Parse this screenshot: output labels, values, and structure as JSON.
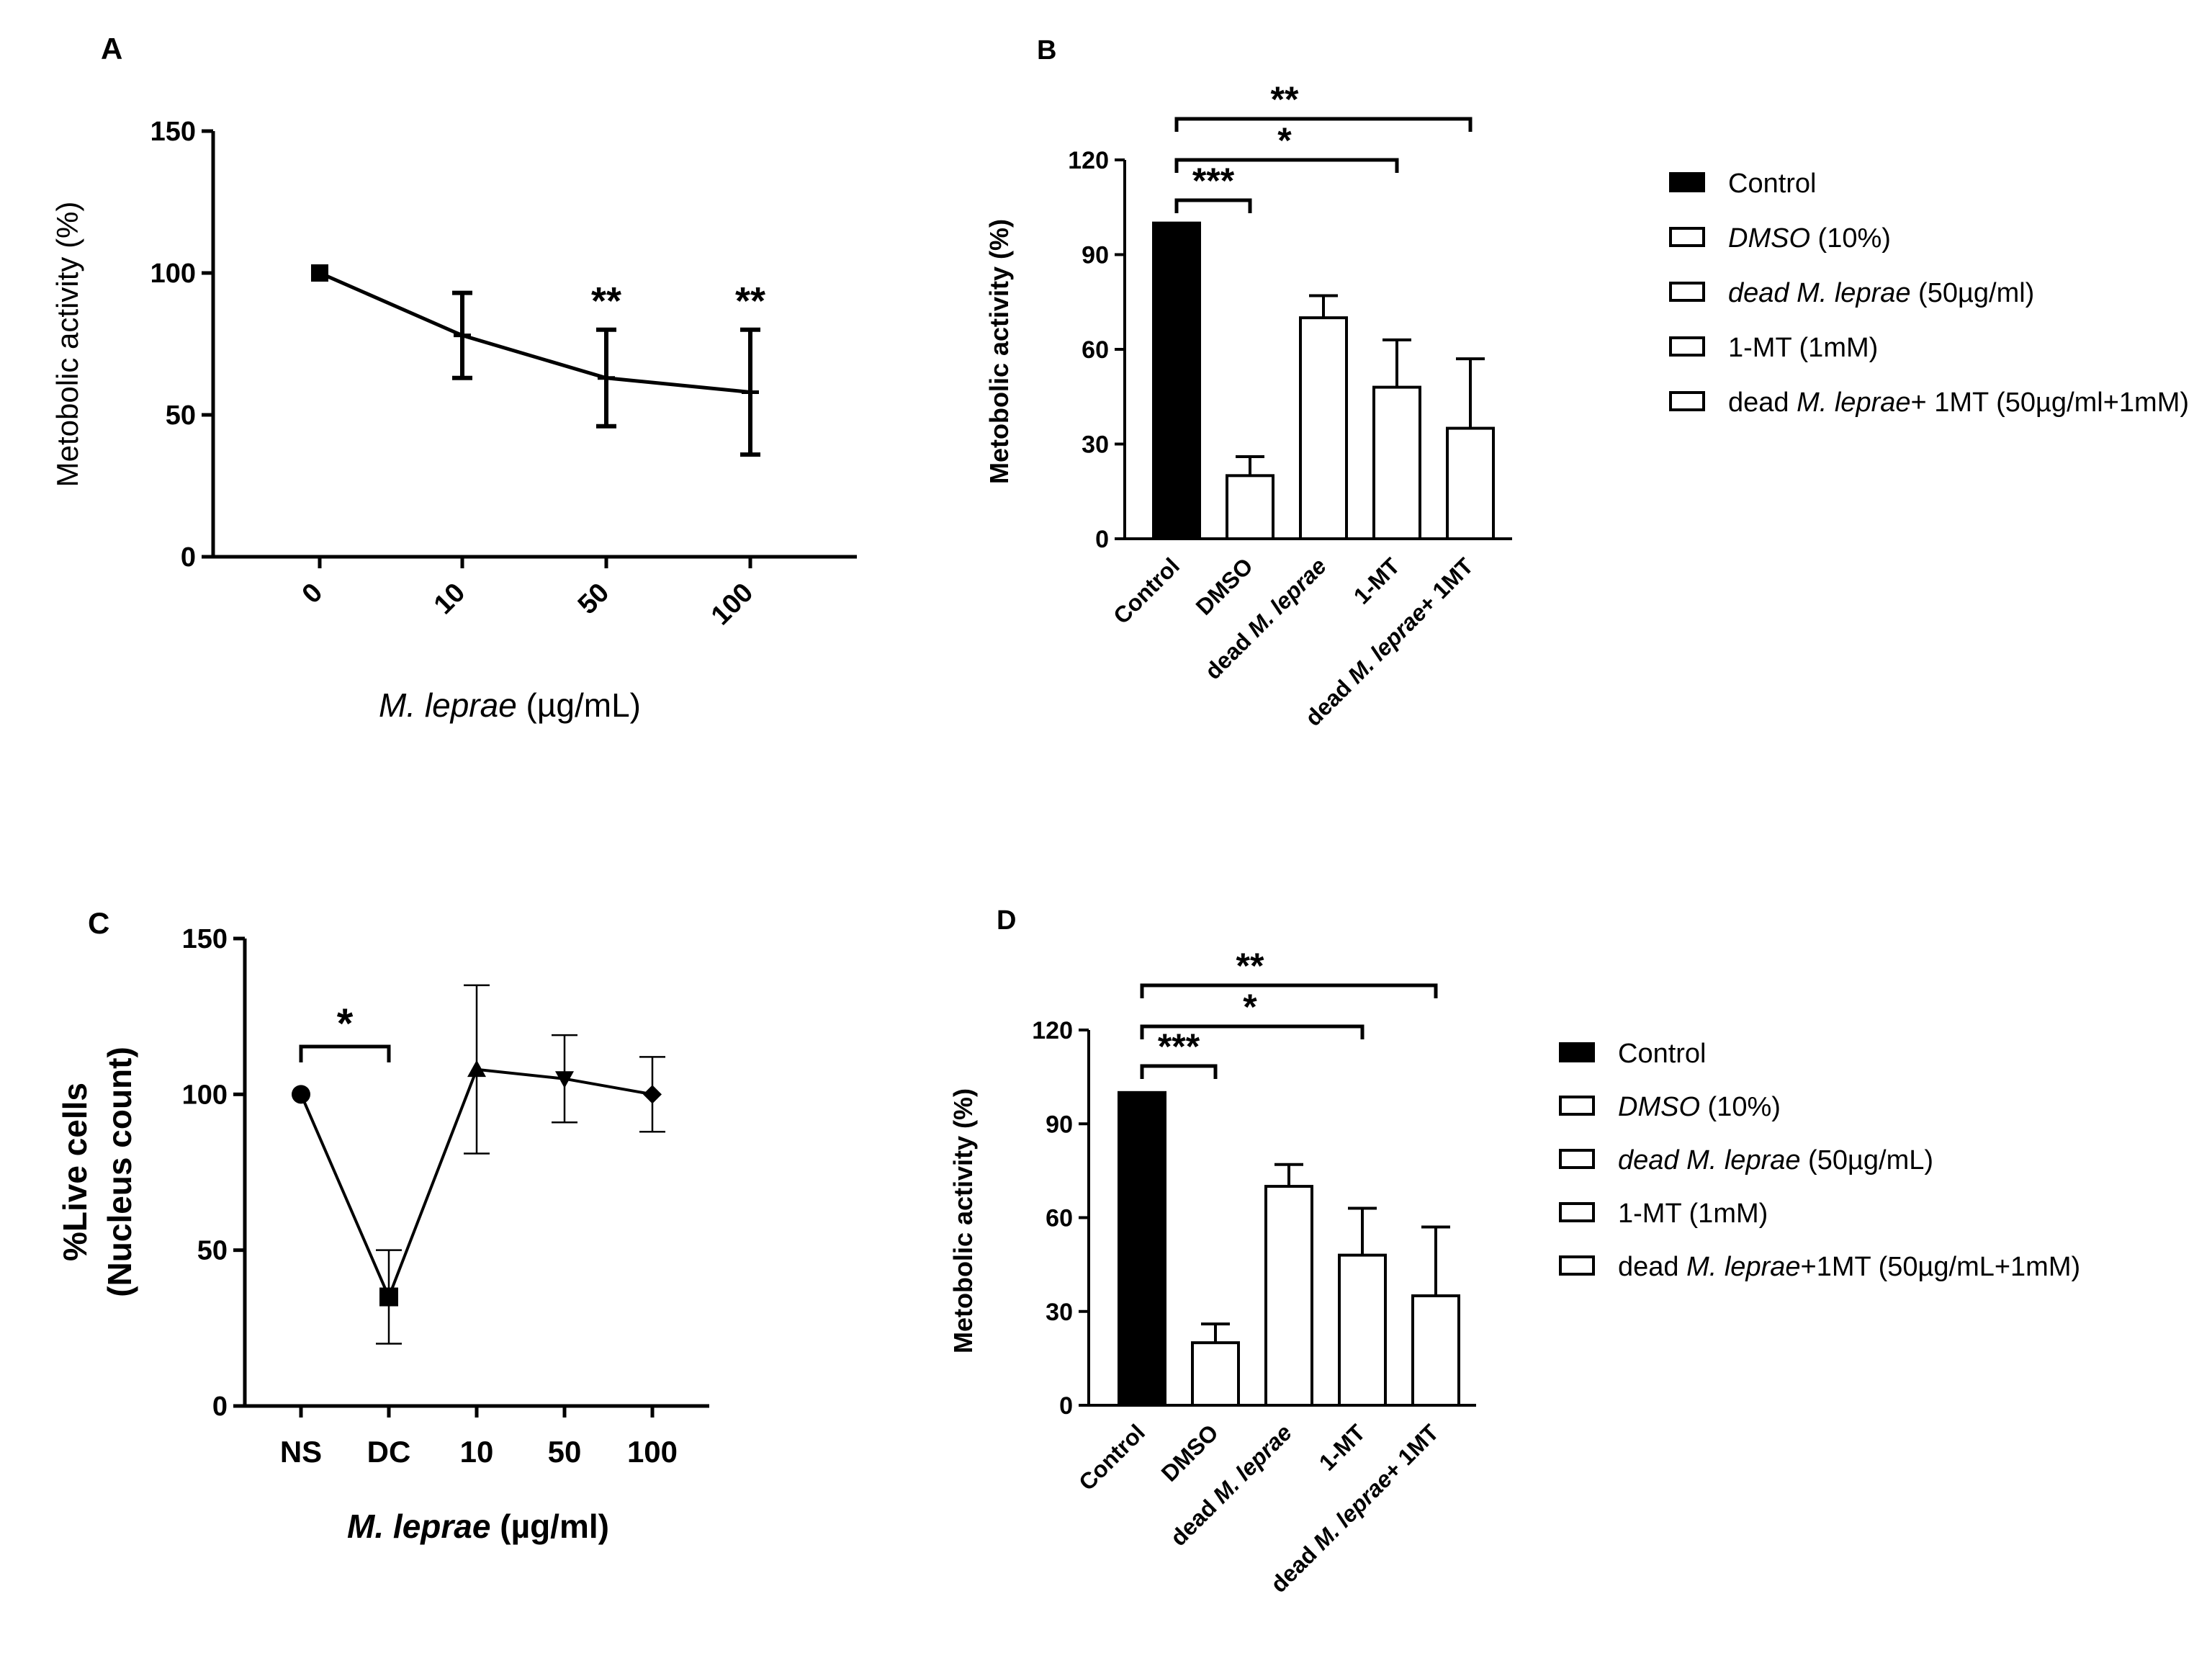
{
  "figure": {
    "panel_letters": [
      "A",
      "B",
      "C",
      "D"
    ],
    "colors": {
      "ink": "#000000",
      "control_fill": "#000000",
      "bar_fill": "#ffffff",
      "background": "#ffffff"
    }
  },
  "chart_data": [
    {
      "panel": "A",
      "type": "line",
      "title": "",
      "xlabel": {
        "italic": "M. leprae",
        "rest": " (µg/mL)"
      },
      "ylabel": "Metobolic activity (%)",
      "ylim": [
        0,
        150
      ],
      "yticks": [
        0,
        50,
        100,
        150
      ],
      "categories": [
        "0",
        "10",
        "50",
        "100"
      ],
      "values": [
        100,
        78,
        63,
        58
      ],
      "errors": [
        0,
        15,
        17,
        22
      ],
      "markers": [
        "square",
        "plus",
        "plus",
        "plus"
      ],
      "significance": [
        "",
        "",
        "**",
        "**"
      ]
    },
    {
      "panel": "B",
      "type": "bar",
      "title": "",
      "ylabel": "Metobolic activity (%)",
      "ylim": [
        0,
        120
      ],
      "yticks": [
        0,
        30,
        60,
        90,
        120
      ],
      "categories": [
        "Control",
        "DMSO",
        "dead M. leprae",
        "1-MT",
        "dead M. leprae+ 1MT"
      ],
      "tick_labels": [
        {
          "pre": "Control",
          "it": "",
          "post": ""
        },
        {
          "pre": "DMSO",
          "it": "",
          "post": ""
        },
        {
          "pre": "dead ",
          "it": "M. leprae",
          "post": ""
        },
        {
          "pre": "1-MT",
          "it": "",
          "post": ""
        },
        {
          "pre": "dead ",
          "it": "M. leprae",
          "post": "+ 1MT"
        }
      ],
      "values": [
        100,
        20,
        70,
        48,
        35
      ],
      "errors": [
        0,
        6,
        7,
        15,
        22
      ],
      "legend": [
        {
          "pre": "",
          "it": "",
          "post": "Control"
        },
        {
          "pre": "",
          "it": "DMSO",
          "post": " (10%)"
        },
        {
          "pre": "",
          "it": "dead M. leprae",
          "post": " (50µg/ml)"
        },
        {
          "pre": "1-MT (1mM)",
          "it": "",
          "post": ""
        },
        {
          "pre": "dead ",
          "it": "M. leprae",
          "post": "+ 1MT (50µg/ml+1mM)"
        }
      ],
      "comparisons": [
        {
          "from": 0,
          "to": 1,
          "label": "***"
        },
        {
          "from": 0,
          "to": 3,
          "label": "*"
        },
        {
          "from": 0,
          "to": 4,
          "label": "**"
        }
      ]
    },
    {
      "panel": "C",
      "type": "line",
      "title": "",
      "xlabel": {
        "italic": "M. leprae",
        "rest": " (µg/ml)"
      },
      "ylabel_lines": [
        "%Live cells",
        "(Nucleus count)"
      ],
      "ylim": [
        0,
        150
      ],
      "yticks": [
        0,
        50,
        100,
        150
      ],
      "categories": [
        "NS",
        "DC",
        "10",
        "50",
        "100"
      ],
      "values": [
        100,
        35,
        108,
        105,
        100
      ],
      "errors": [
        0,
        15,
        27,
        14,
        12
      ],
      "markers": [
        "circle",
        "square",
        "triangle-up",
        "triangle-down",
        "diamond"
      ],
      "comparisons": [
        {
          "from": 0,
          "to": 1,
          "label": "*"
        }
      ]
    },
    {
      "panel": "D",
      "type": "bar",
      "title": "",
      "ylabel": "Metobolic activity (%)",
      "ylim": [
        0,
        120
      ],
      "yticks": [
        0,
        30,
        60,
        90,
        120
      ],
      "categories": [
        "Control",
        "DMSO",
        "dead M. leprae",
        "1-MT",
        "dead M. leprae+ 1MT"
      ],
      "tick_labels": [
        {
          "pre": "Control",
          "it": "",
          "post": ""
        },
        {
          "pre": "DMSO",
          "it": "",
          "post": ""
        },
        {
          "pre": "dead ",
          "it": "M. leprae",
          "post": ""
        },
        {
          "pre": "1-MT",
          "it": "",
          "post": ""
        },
        {
          "pre": "dead ",
          "it": "M. leprae",
          "post": "+ 1MT"
        }
      ],
      "values": [
        100,
        20,
        70,
        48,
        35
      ],
      "errors": [
        0,
        6,
        7,
        15,
        22
      ],
      "legend": [
        {
          "pre": "",
          "it": "",
          "post": "Control"
        },
        {
          "pre": "",
          "it": "DMSO",
          "post": " (10%)"
        },
        {
          "pre": "",
          "it": "dead M. leprae",
          "post": " (50µg/mL)"
        },
        {
          "pre": "1-MT (1mM)",
          "it": "",
          "post": ""
        },
        {
          "pre": "dead ",
          "it": "M. leprae",
          "post": "+1MT (50µg/mL+1mM)"
        }
      ],
      "comparisons": [
        {
          "from": 0,
          "to": 1,
          "label": "***"
        },
        {
          "from": 0,
          "to": 3,
          "label": "*"
        },
        {
          "from": 0,
          "to": 4,
          "label": "**"
        }
      ]
    }
  ]
}
